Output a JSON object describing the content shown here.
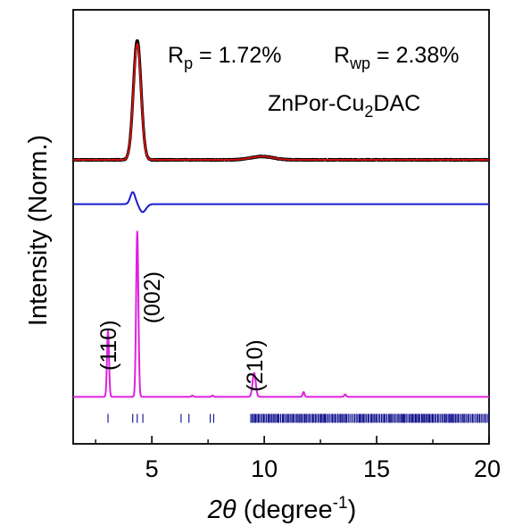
{
  "chart_data": {
    "type": "line",
    "xlabel_symbol": "2θ",
    "xlabel_rest": " (degree",
    "xlabel_sup": "-1",
    "xlabel_close": ")",
    "ylabel": "Intensity (Norm.)",
    "xlim": [
      1.5,
      20
    ],
    "xticks": [
      5,
      10,
      15,
      20
    ],
    "xminor": [
      2.5,
      7.5,
      12.5,
      17.5
    ],
    "yticks_shown": false,
    "stats": {
      "rp_main": "R",
      "rp_sub": "p",
      "rp_val": " = 1.72%",
      "rwp_main": "R",
      "rwp_sub": "wp",
      "rwp_val": " = 2.38%"
    },
    "sample": {
      "pre": "ZnPor-Cu",
      "sub": "2",
      "post": "DAC"
    },
    "series": [
      {
        "role": "experimental",
        "color": "#000000",
        "baseline": 0.0,
        "peaks": [
          {
            "x": 4.35,
            "h": 1.0,
            "w": 0.17
          },
          {
            "x": 9.9,
            "h": 0.028,
            "w": 0.5
          }
        ],
        "noise": 0.008
      },
      {
        "role": "calculated",
        "color": "#cc1111",
        "baseline": 0.0,
        "peaks": [
          {
            "x": 4.35,
            "h": 0.97,
            "w": 0.17
          },
          {
            "x": 9.9,
            "h": 0.028,
            "w": 0.5
          }
        ]
      },
      {
        "role": "difference",
        "color": "#1a1acc",
        "baseline": -0.37,
        "peaks": [
          {
            "x": 4.15,
            "h": 0.1,
            "w": 0.11
          },
          {
            "x": 4.55,
            "h": -0.05,
            "w": 0.11
          },
          {
            "x": 4.7,
            "h": -0.03,
            "w": 0.12
          }
        ]
      },
      {
        "role": "simulated",
        "color": "#e020e0",
        "baseline": -1.98,
        "peaks": [
          {
            "x": 3.05,
            "h": 0.55,
            "w": 0.045
          },
          {
            "x": 4.35,
            "h": 1.38,
            "w": 0.05
          },
          {
            "x": 6.8,
            "h": 0.01,
            "w": 0.04
          },
          {
            "x": 7.7,
            "h": 0.01,
            "w": 0.04
          },
          {
            "x": 9.55,
            "h": 0.2,
            "w": 0.07
          },
          {
            "x": 11.75,
            "h": 0.04,
            "w": 0.04
          },
          {
            "x": 13.6,
            "h": 0.02,
            "w": 0.04
          }
        ]
      }
    ],
    "peak_labels": [
      {
        "text": "(110)",
        "x": 3.05,
        "y": -1.55
      },
      {
        "text": "(002)",
        "x": 5.0,
        "y": -1.15
      },
      {
        "text": "(210)",
        "x": 9.55,
        "y": -1.72
      }
    ],
    "reflection_ticks": {
      "color": "#0a0a8a",
      "y_center": -2.16,
      "positions": [
        3.05,
        4.15,
        4.35,
        4.6,
        6.3,
        6.65,
        7.6,
        7.75
      ],
      "dense_from": 9.4,
      "dense_to": 20.0
    }
  }
}
